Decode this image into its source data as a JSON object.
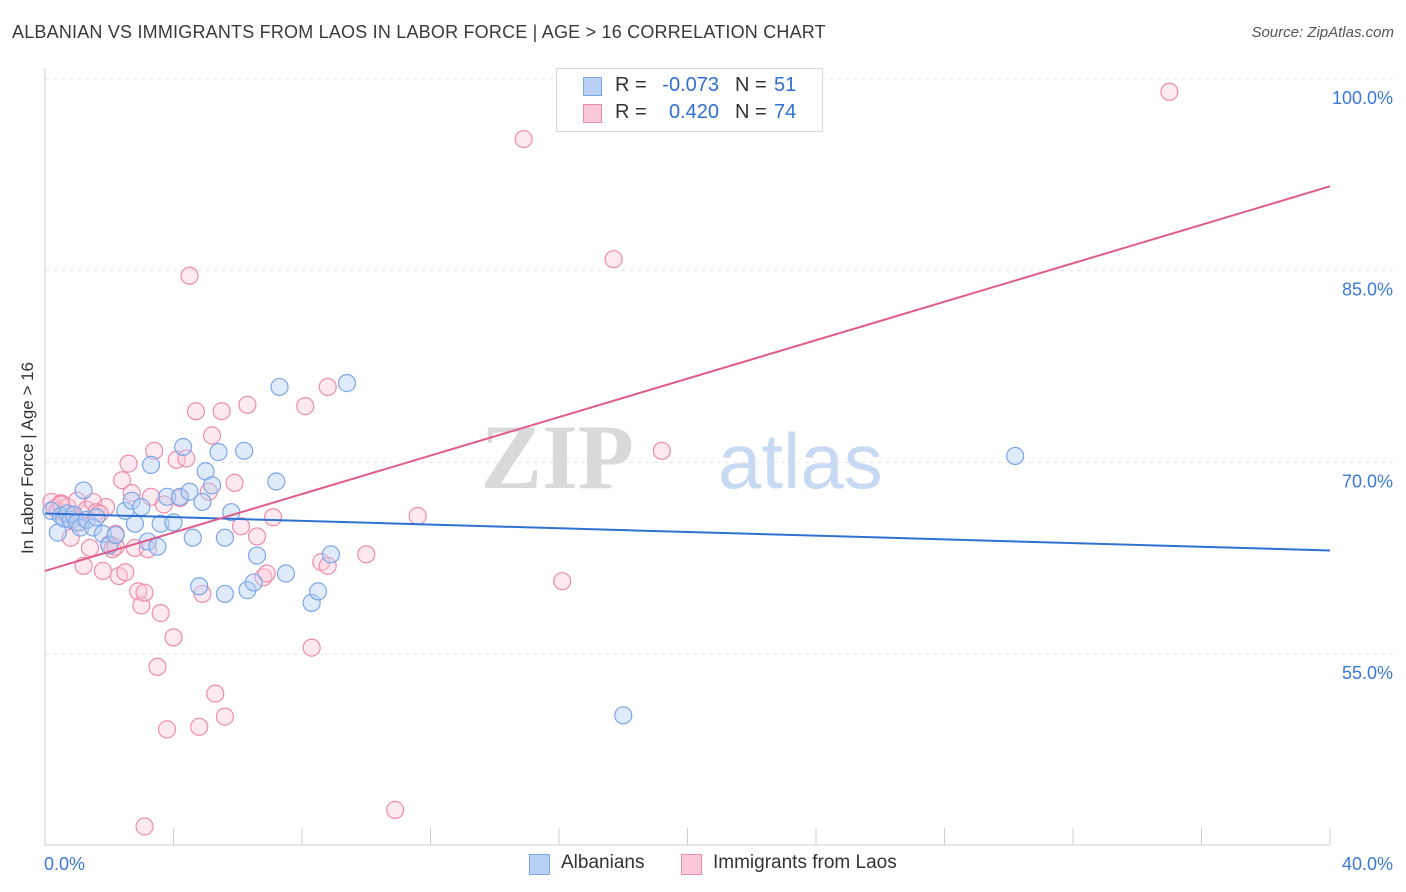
{
  "header": {
    "title": "ALBANIAN VS IMMIGRANTS FROM LAOS IN LABOR FORCE | AGE > 16 CORRELATION CHART",
    "source": "Source: ZipAtlas.com"
  },
  "watermark": {
    "part1": "ZIP",
    "part2": "atlas"
  },
  "stats": [
    {
      "r_label": "R =",
      "r_value": "-0.073",
      "n_label": "N =",
      "n_value": "51",
      "color": "#7ba7e8",
      "fill": "#b9d0f5"
    },
    {
      "r_label": "R =",
      "r_value": "0.420",
      "n_label": "N =",
      "n_value": "74",
      "color": "#ee8cab",
      "fill": "#f9c9d8"
    }
  ],
  "legend": [
    {
      "label": "Albanians",
      "color": "#7ba7e8",
      "fill": "#b9d0f5"
    },
    {
      "label": "Immigrants from Laos",
      "color": "#ee8cab",
      "fill": "#f9c9d8"
    }
  ],
  "colors": {
    "blue_line": "#2f72d4",
    "pink_line": "#e05c8c",
    "tick_text": "#3b78d6",
    "grid": "#e4e4e4"
  },
  "chart_data": {
    "type": "scatter",
    "title": "ALBANIAN VS IMMIGRANTS FROM LAOS IN LABOR FORCE | AGE > 16 CORRELATION CHART",
    "xlabel": "",
    "ylabel": "In Labor Force | Age > 16",
    "xlim": [
      0,
      40
    ],
    "ylim": [
      38,
      103
    ],
    "x_tick_labels": [
      {
        "value": 0,
        "label": "0.0%"
      },
      {
        "value": 40,
        "label": "40.0%"
      }
    ],
    "y_tick_labels": [
      {
        "value": 55,
        "label": "55.0%"
      },
      {
        "value": 70,
        "label": "70.0%"
      },
      {
        "value": 85,
        "label": "85.0%"
      },
      {
        "value": 100,
        "label": "100.0%"
      }
    ],
    "series": [
      {
        "name": "Albanians",
        "r": -0.073,
        "n": 51,
        "trend": {
          "x": [
            0,
            40
          ],
          "y": [
            66.0,
            63.1
          ]
        },
        "points": [
          [
            0.2,
            66.2
          ],
          [
            0.4,
            64.5
          ],
          [
            0.5,
            65.8
          ],
          [
            0.6,
            65.6
          ],
          [
            0.7,
            66.0
          ],
          [
            0.8,
            65.5
          ],
          [
            0.9,
            65.9
          ],
          [
            1.0,
            65.3
          ],
          [
            1.1,
            64.9
          ],
          [
            1.2,
            67.8
          ],
          [
            1.3,
            65.5
          ],
          [
            1.5,
            64.9
          ],
          [
            1.6,
            65.7
          ],
          [
            1.8,
            64.4
          ],
          [
            2.0,
            63.5
          ],
          [
            2.2,
            64.3
          ],
          [
            2.5,
            66.2
          ],
          [
            2.7,
            67.0
          ],
          [
            2.8,
            65.2
          ],
          [
            3.0,
            66.5
          ],
          [
            3.2,
            63.8
          ],
          [
            3.3,
            69.8
          ],
          [
            3.5,
            63.4
          ],
          [
            3.6,
            65.2
          ],
          [
            3.8,
            67.3
          ],
          [
            4.0,
            65.3
          ],
          [
            4.2,
            67.3
          ],
          [
            4.3,
            71.2
          ],
          [
            4.5,
            67.7
          ],
          [
            4.6,
            64.1
          ],
          [
            4.8,
            60.3
          ],
          [
            4.9,
            66.9
          ],
          [
            5.0,
            69.3
          ],
          [
            5.2,
            68.2
          ],
          [
            5.4,
            70.8
          ],
          [
            5.6,
            64.1
          ],
          [
            5.6,
            59.7
          ],
          [
            5.8,
            66.1
          ],
          [
            6.2,
            70.9
          ],
          [
            6.3,
            60.0
          ],
          [
            6.5,
            60.6
          ],
          [
            6.6,
            62.7
          ],
          [
            7.2,
            68.5
          ],
          [
            7.3,
            75.9
          ],
          [
            7.5,
            61.3
          ],
          [
            8.3,
            59.0
          ],
          [
            8.5,
            59.9
          ],
          [
            8.9,
            62.8
          ],
          [
            9.4,
            76.2
          ],
          [
            30.2,
            70.5
          ],
          [
            18.0,
            50.2
          ]
        ]
      },
      {
        "name": "Immigrants from Laos",
        "r": 0.42,
        "n": 74,
        "trend": {
          "x": [
            0,
            40
          ],
          "y": [
            61.5,
            91.6
          ]
        },
        "points": [
          [
            0.2,
            66.9
          ],
          [
            0.3,
            66.4
          ],
          [
            0.4,
            66.2
          ],
          [
            0.5,
            66.8
          ],
          [
            0.6,
            66.0
          ],
          [
            0.7,
            66.5
          ],
          [
            0.8,
            64.1
          ],
          [
            0.9,
            65.8
          ],
          [
            1.0,
            67.0
          ],
          [
            1.1,
            65.3
          ],
          [
            1.2,
            61.9
          ],
          [
            1.3,
            66.3
          ],
          [
            1.4,
            63.3
          ],
          [
            1.5,
            66.9
          ],
          [
            1.6,
            66.1
          ],
          [
            1.8,
            61.5
          ],
          [
            1.9,
            66.5
          ],
          [
            2.0,
            63.6
          ],
          [
            2.1,
            63.2
          ],
          [
            2.2,
            63.4
          ],
          [
            2.3,
            61.1
          ],
          [
            2.4,
            68.6
          ],
          [
            2.5,
            61.4
          ],
          [
            2.6,
            69.9
          ],
          [
            2.7,
            67.6
          ],
          [
            2.8,
            63.3
          ],
          [
            2.9,
            59.9
          ],
          [
            3.0,
            58.8
          ],
          [
            3.1,
            59.8
          ],
          [
            3.2,
            63.2
          ],
          [
            3.3,
            67.3
          ],
          [
            3.4,
            70.9
          ],
          [
            3.5,
            54.0
          ],
          [
            3.6,
            58.2
          ],
          [
            3.7,
            66.7
          ],
          [
            3.8,
            49.1
          ],
          [
            4.0,
            56.3
          ],
          [
            4.1,
            70.2
          ],
          [
            4.2,
            67.2
          ],
          [
            4.4,
            70.3
          ],
          [
            4.5,
            84.6
          ],
          [
            4.7,
            74.0
          ],
          [
            4.8,
            49.3
          ],
          [
            4.9,
            59.7
          ],
          [
            5.1,
            67.7
          ],
          [
            5.2,
            72.1
          ],
          [
            5.3,
            51.9
          ],
          [
            5.5,
            74.0
          ],
          [
            5.6,
            50.1
          ],
          [
            5.9,
            68.4
          ],
          [
            6.1,
            65.0
          ],
          [
            6.3,
            74.5
          ],
          [
            6.6,
            64.2
          ],
          [
            6.8,
            61.0
          ],
          [
            6.9,
            61.3
          ],
          [
            7.1,
            65.7
          ],
          [
            8.1,
            74.4
          ],
          [
            8.3,
            55.5
          ],
          [
            8.6,
            62.2
          ],
          [
            8.8,
            61.9
          ],
          [
            8.8,
            75.9
          ],
          [
            10.0,
            62.8
          ],
          [
            10.9,
            42.8
          ],
          [
            11.6,
            65.8
          ],
          [
            14.9,
            95.3
          ],
          [
            16.1,
            60.7
          ],
          [
            17.7,
            85.9
          ],
          [
            19.2,
            70.9
          ],
          [
            35.0,
            99.0
          ],
          [
            3.1,
            41.5
          ],
          [
            0.5,
            66.7
          ],
          [
            0.9,
            65.6
          ],
          [
            1.7,
            66.0
          ],
          [
            2.2,
            64.4
          ]
        ]
      }
    ]
  }
}
